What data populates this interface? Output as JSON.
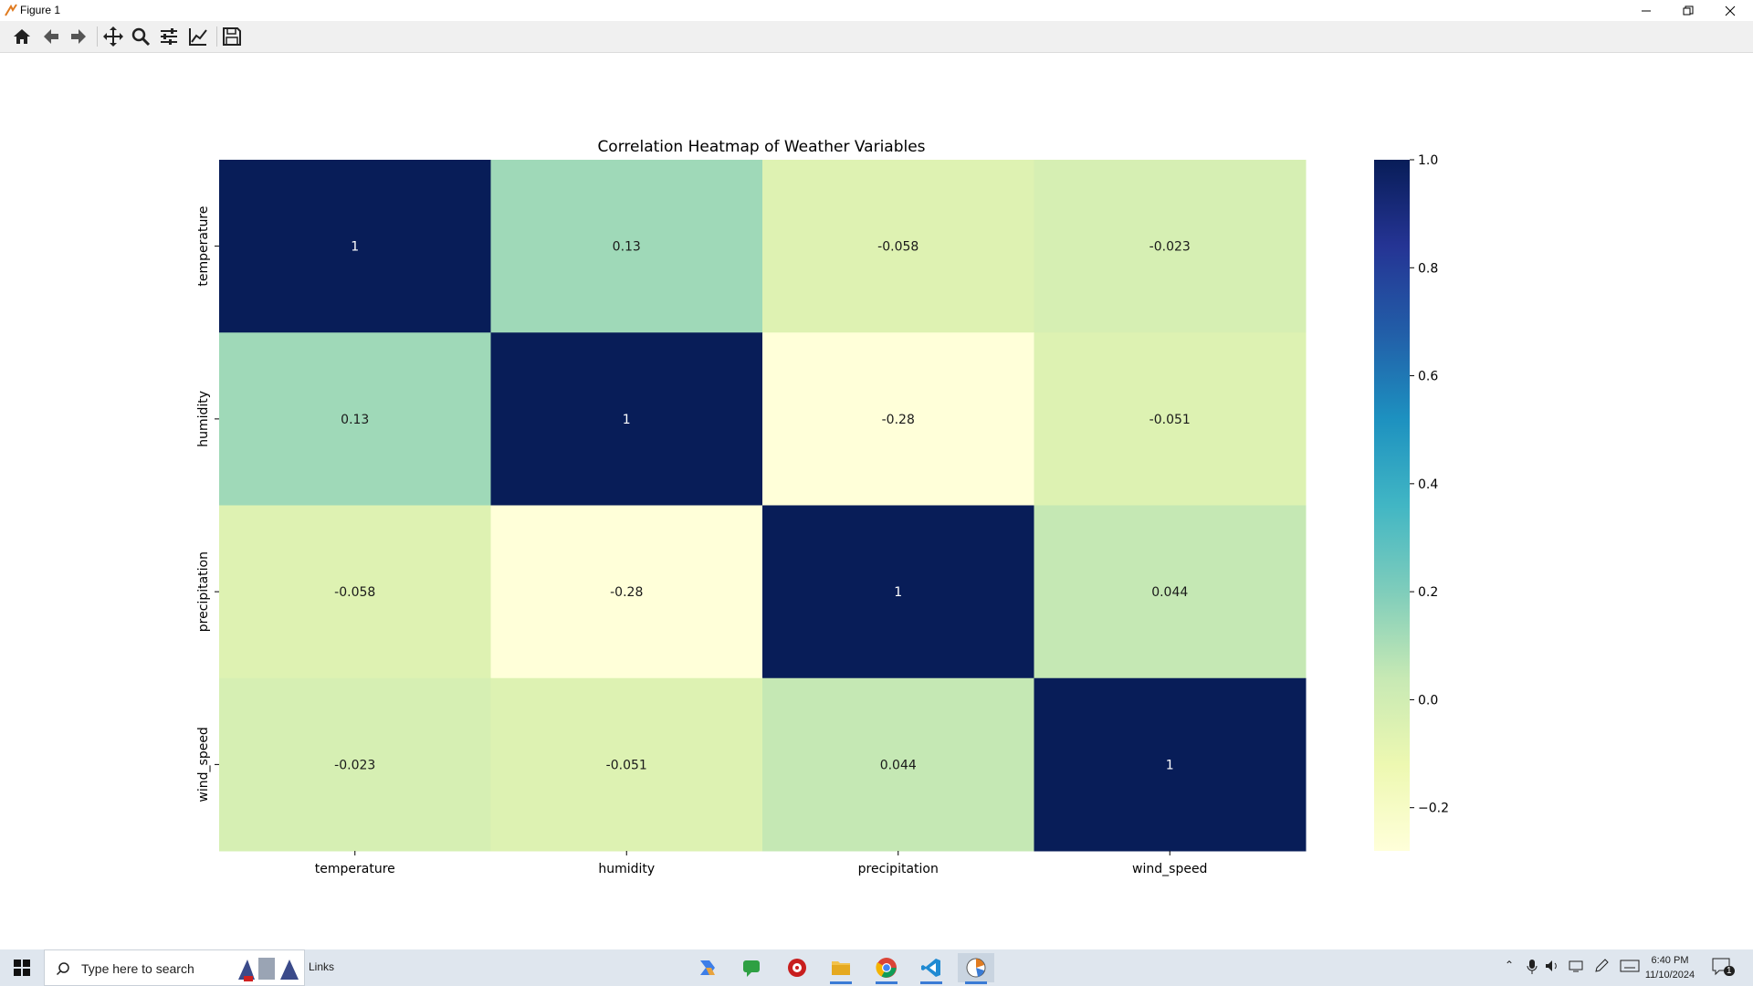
{
  "window": {
    "title": "Figure 1"
  },
  "toolbar": {
    "buttons": [
      "home-icon",
      "back-icon",
      "forward-icon",
      "pan-icon",
      "zoom-icon",
      "configure-subplots-icon",
      "edit-axis-icon",
      "save-icon"
    ]
  },
  "chart_data": {
    "type": "heatmap",
    "title": "Correlation Heatmap of Weather Variables",
    "x_labels": [
      "temperature",
      "humidity",
      "precipitation",
      "wind_speed"
    ],
    "y_labels": [
      "temperature",
      "humidity",
      "precipitation",
      "wind_speed"
    ],
    "values": [
      [
        1,
        0.13,
        -0.058,
        -0.023
      ],
      [
        0.13,
        1,
        -0.28,
        -0.051
      ],
      [
        -0.058,
        -0.28,
        1,
        0.044
      ],
      [
        -0.023,
        -0.051,
        0.044,
        1
      ]
    ],
    "annotations": [
      [
        "1",
        "0.13",
        "-0.058",
        "-0.023"
      ],
      [
        "0.13",
        "1",
        "-0.28",
        "-0.051"
      ],
      [
        "-0.058",
        "-0.28",
        "1",
        "0.044"
      ],
      [
        "-0.023",
        "-0.051",
        "0.044",
        "1"
      ]
    ],
    "colormap": "YlGnBu",
    "vmin": -0.28,
    "vmax": 1.0,
    "colorbar_ticks": [
      {
        "value": 1.0,
        "label": "1.0"
      },
      {
        "value": 0.8,
        "label": "0.8"
      },
      {
        "value": 0.6,
        "label": "0.6"
      },
      {
        "value": 0.4,
        "label": "0.4"
      },
      {
        "value": 0.2,
        "label": "0.2"
      },
      {
        "value": 0.0,
        "label": "0.0"
      },
      {
        "value": -0.2,
        "label": "−0.2"
      }
    ]
  },
  "taskbar": {
    "search_placeholder": "Type here to search",
    "links_label": "Links",
    "time": "6:40 PM",
    "date": "11/10/2024",
    "notification_count": "1"
  }
}
